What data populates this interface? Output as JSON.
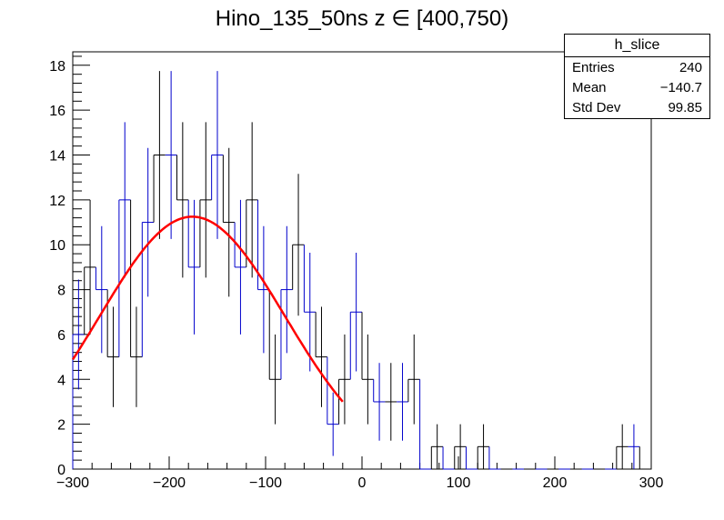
{
  "chart_data": {
    "type": "bar",
    "title": "Hino_135_50ns z  ∈ [400,750)",
    "xlabel": "",
    "ylabel": "",
    "xlim": [
      -300,
      300
    ],
    "ylim": [
      0,
      18.6
    ],
    "bin_width": 12,
    "values": [
      6,
      9,
      8,
      5,
      12,
      5,
      11,
      14,
      14,
      12,
      9,
      12,
      14,
      11,
      9,
      12,
      8,
      4,
      8,
      10,
      7,
      5,
      2,
      4,
      7,
      4,
      3,
      3,
      3,
      4,
      0,
      1,
      0,
      1,
      0,
      1,
      0,
      0,
      0,
      0,
      0,
      0,
      0,
      0,
      0,
      0,
      0,
      1,
      1,
      0
    ],
    "x_ticks": [
      -300,
      -200,
      -100,
      0,
      100,
      200,
      300
    ],
    "x_tick_labels": [
      "−300",
      "−200",
      "−100",
      "0",
      "100",
      "200",
      "300"
    ],
    "y_ticks": [
      0,
      2,
      4,
      6,
      8,
      10,
      12,
      14,
      16,
      18
    ],
    "y_tick_labels": [
      "0",
      "2",
      "4",
      "6",
      "8",
      "10",
      "12",
      "14",
      "16",
      "18"
    ],
    "fit": {
      "type": "gaus",
      "amplitude": 11.25,
      "mean": -176,
      "sigma": 96,
      "range": [
        -300,
        -20
      ],
      "color": "#ff0000"
    },
    "colors": {
      "hist_a": "#0000cc",
      "hist_b": "#000000"
    },
    "stats": {
      "title": "h_slice",
      "rows": [
        {
          "label": "Entries",
          "value": "240"
        },
        {
          "label": "Mean",
          "value": "−140.7"
        },
        {
          "label": "Std Dev",
          "value": "99.85"
        }
      ]
    }
  }
}
